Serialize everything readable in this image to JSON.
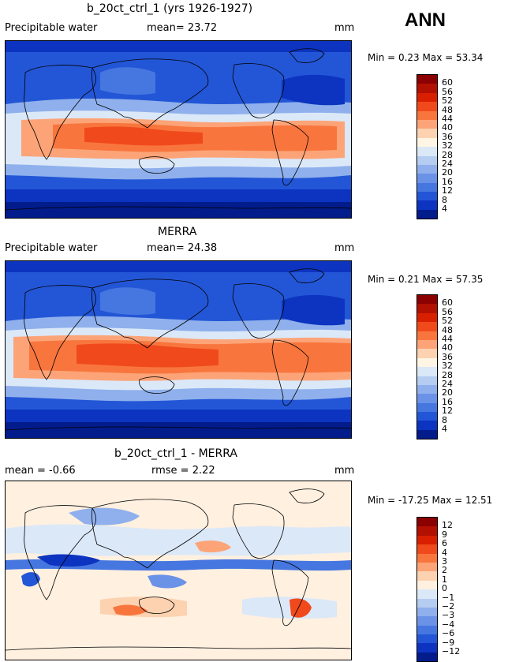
{
  "header": {
    "season": "ANN"
  },
  "panels": [
    {
      "title": "b_20ct_ctrl_1 (yrs 1926-1927)",
      "left_label": "Precipitable water",
      "mid_label": "mean=  23.72",
      "unit": "mm",
      "stats": "Min =    0.23 Max =  53.34",
      "colorbar": {
        "levels": [
          "60",
          "56",
          "52",
          "48",
          "44",
          "40",
          "36",
          "32",
          "28",
          "24",
          "20",
          "16",
          "12",
          "8",
          "4"
        ],
        "colors": [
          "#8b0000",
          "#b21000",
          "#d82000",
          "#f04a1c",
          "#f8763e",
          "#fca478",
          "#fdd2b0",
          "#fff5e4",
          "#dbe8f8",
          "#b6cdf2",
          "#8fb0ec",
          "#6a92e6",
          "#4676e0",
          "#2356d6",
          "#0c34c0",
          "#021c8c"
        ]
      }
    },
    {
      "title": "MERRA",
      "left_label": "Precipitable water",
      "mid_label": "mean=  24.38",
      "unit": "mm",
      "stats": "Min =    0.21 Max =  57.35",
      "colorbar": {
        "levels": [
          "60",
          "56",
          "52",
          "48",
          "44",
          "40",
          "36",
          "32",
          "28",
          "24",
          "20",
          "16",
          "12",
          "8",
          "4"
        ],
        "colors": [
          "#8b0000",
          "#b21000",
          "#d82000",
          "#f04a1c",
          "#f8763e",
          "#fca478",
          "#fdd2b0",
          "#fff5e4",
          "#dbe8f8",
          "#b6cdf2",
          "#8fb0ec",
          "#6a92e6",
          "#4676e0",
          "#2356d6",
          "#0c34c0",
          "#021c8c"
        ]
      }
    },
    {
      "title": "b_20ct_ctrl_1 - MERRA",
      "left_label": "mean =   -0.66",
      "mid_label": "rmse =    2.22",
      "unit": "mm",
      "stats": "Min = -17.25 Max =  12.51",
      "colorbar": {
        "levels": [
          "12",
          "9",
          "6",
          "4",
          "3",
          "2",
          "1",
          "0",
          "−1",
          "−2",
          "−3",
          "−4",
          "−6",
          "−9",
          "−12"
        ],
        "colors": [
          "#8b0000",
          "#b21000",
          "#d82000",
          "#f04a1c",
          "#f8763e",
          "#fca478",
          "#fdd2b0",
          "#fff0e0",
          "#dbe8f8",
          "#b6cdf2",
          "#8fb0ec",
          "#6a92e6",
          "#4676e0",
          "#2356d6",
          "#0c34c0",
          "#021c8c"
        ]
      }
    }
  ]
}
